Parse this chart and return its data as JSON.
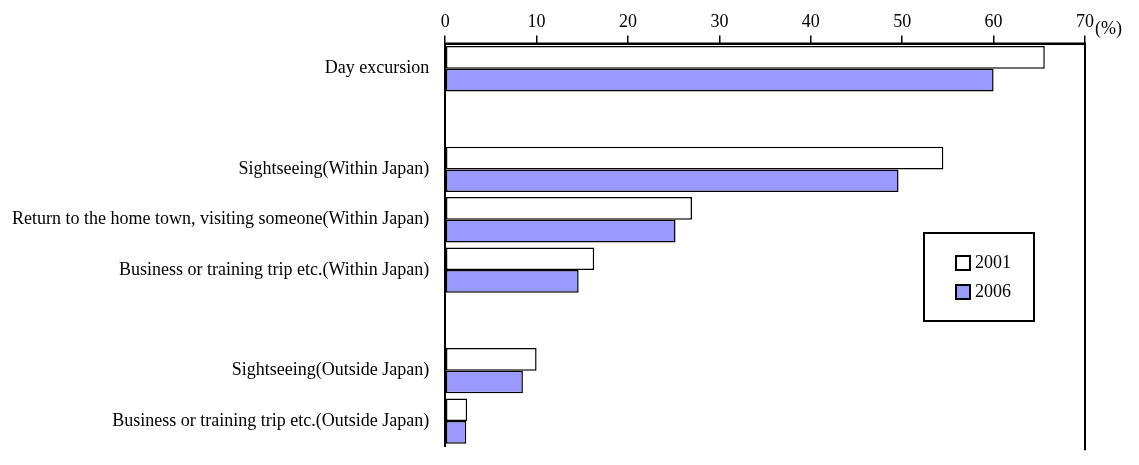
{
  "chart_data": {
    "type": "bar",
    "orientation": "horizontal",
    "xlabel": "(%)",
    "categories": [
      "Day excursion",
      null,
      "Sightseeing(Within Japan)",
      "Return to the home town, visiting someone(Within Japan)",
      "Business or training trip etc.(Within Japan)",
      null,
      "Sightseeing(Outside Japan)",
      "Business or training trip etc.(Outside Japan)"
    ],
    "series": [
      {
        "name": "2001",
        "color": "#ffffff",
        "values": [
          65.6,
          null,
          54.5,
          27.0,
          16.3,
          null,
          10.0,
          2.4
        ]
      },
      {
        "name": "2006",
        "color": "#9999ff",
        "values": [
          60.0,
          null,
          49.6,
          25.2,
          14.6,
          null,
          8.5,
          2.3
        ]
      }
    ],
    "xlim": [
      0,
      70
    ],
    "xticks": [
      0,
      10,
      20,
      30,
      40,
      50,
      60,
      70
    ],
    "grid": false,
    "legend": "right"
  }
}
